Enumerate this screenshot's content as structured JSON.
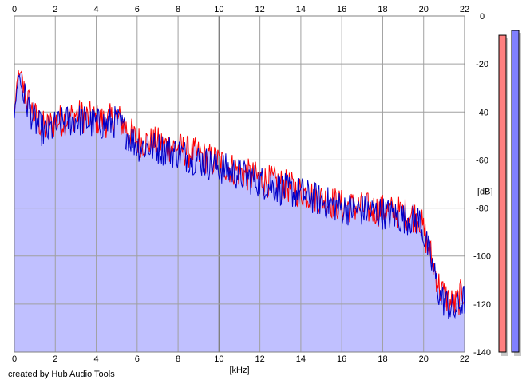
{
  "chart_data": {
    "type": "area",
    "title": "",
    "xlabel": "[kHz]",
    "ylabel": "[dB]",
    "xlim": [
      0,
      22
    ],
    "ylim": [
      -140,
      0
    ],
    "x_ticks": [
      0,
      2,
      4,
      6,
      8,
      10,
      12,
      14,
      16,
      18,
      20,
      22
    ],
    "y_ticks": [
      0,
      -20,
      -40,
      -60,
      -80,
      -100,
      -120,
      -140
    ],
    "grid": true,
    "fill_color": "#c0c0ff",
    "series": [
      {
        "color": "#ff0000",
        "x": [
          0,
          0.2,
          0.5,
          1,
          1.5,
          2,
          2.5,
          3,
          3.5,
          4,
          4.5,
          5,
          5.5,
          6,
          7,
          8,
          9,
          10,
          11,
          12,
          13,
          14,
          15,
          16,
          17,
          18,
          19,
          19.8,
          20.3,
          20.8,
          21.5,
          22
        ],
        "values": [
          -40,
          -23,
          -32,
          -42,
          -47,
          -44,
          -43,
          -41,
          -42,
          -43,
          -44,
          -42,
          -47,
          -52,
          -53,
          -55,
          -58,
          -61,
          -65,
          -68,
          -70,
          -73,
          -76,
          -79,
          -80,
          -81,
          -82,
          -84,
          -98,
          -114,
          -121,
          -114
        ]
      },
      {
        "color": "#0000c8",
        "x": [
          0,
          0.2,
          0.5,
          1,
          1.5,
          2,
          2.5,
          3,
          3.5,
          4,
          4.5,
          5,
          5.5,
          6,
          7,
          8,
          9,
          10,
          11,
          12,
          13,
          14,
          15,
          16,
          17,
          18,
          19,
          19.8,
          20.3,
          20.8,
          21.5,
          22
        ],
        "values": [
          -42,
          -24,
          -34,
          -44,
          -49,
          -46,
          -44,
          -43,
          -44,
          -45,
          -45,
          -44,
          -49,
          -54,
          -55,
          -57,
          -60,
          -63,
          -66,
          -69,
          -72,
          -74,
          -77,
          -80,
          -81,
          -82,
          -84,
          -85,
          -100,
          -117,
          -123,
          -118
        ]
      }
    ],
    "level_meters": [
      {
        "color": "#ff8080",
        "level_db": -8
      },
      {
        "color": "#8080ff",
        "level_db": -6
      }
    ]
  },
  "footer": {
    "credit": "created by Hub Audio Tools"
  }
}
